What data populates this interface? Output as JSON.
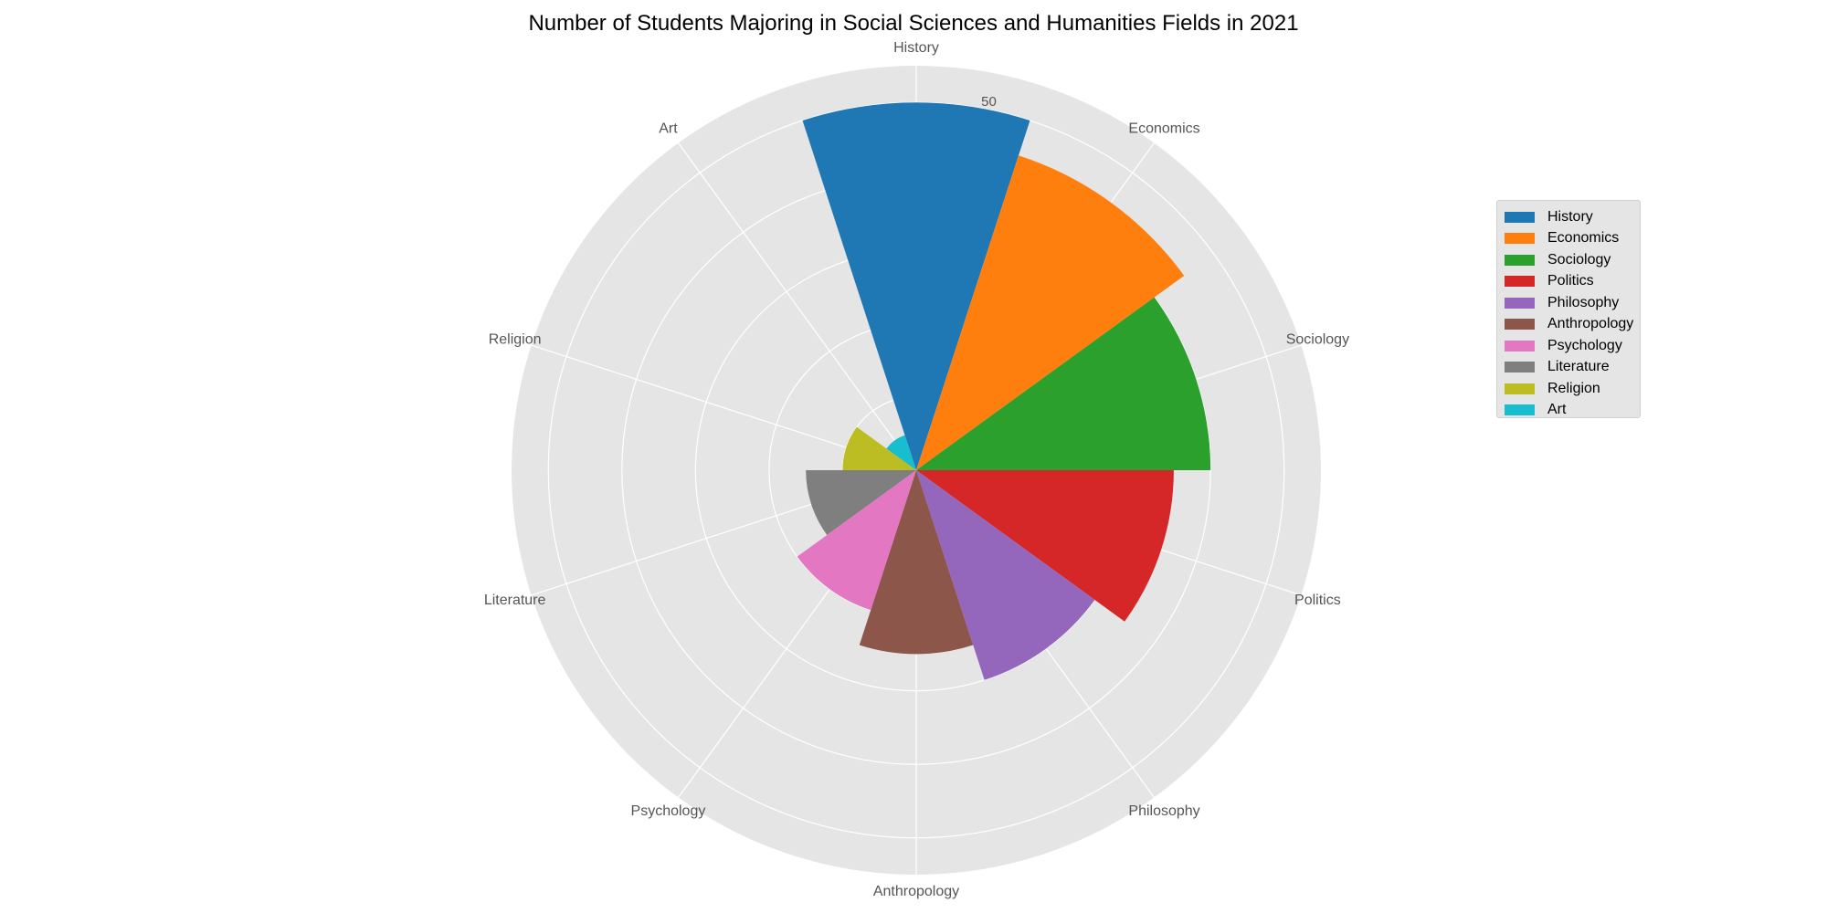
{
  "chart_data": {
    "type": "polar-bar",
    "title": "Number of Students Majoring in Social Sciences and Humanities Fields in 2021",
    "categories": [
      "History",
      "Economics",
      "Sociology",
      "Politics",
      "Philosophy",
      "Anthropology",
      "Psychology",
      "Literature",
      "Religion",
      "Art"
    ],
    "values": [
      50,
      45,
      40,
      35,
      30,
      25,
      20,
      15,
      10,
      5
    ],
    "colors": [
      "#1f77b4",
      "#ff7f0e",
      "#2ca02c",
      "#d62728",
      "#9467bd",
      "#8c564b",
      "#e377c2",
      "#7f7f7f",
      "#bcbd22",
      "#17becf"
    ],
    "rlim": [
      0,
      55
    ],
    "r_ticks": [
      10,
      20,
      30,
      40,
      50
    ],
    "r_tick_labels": [
      "",
      "",
      "",
      "",
      "50"
    ],
    "grid": true,
    "background": "#e5e5e5",
    "legend": {
      "placement": "right",
      "entries": [
        "History",
        "Economics",
        "Sociology",
        "Politics",
        "Philosophy",
        "Anthropology",
        "Psychology",
        "Literature",
        "Religion",
        "Art"
      ]
    }
  }
}
